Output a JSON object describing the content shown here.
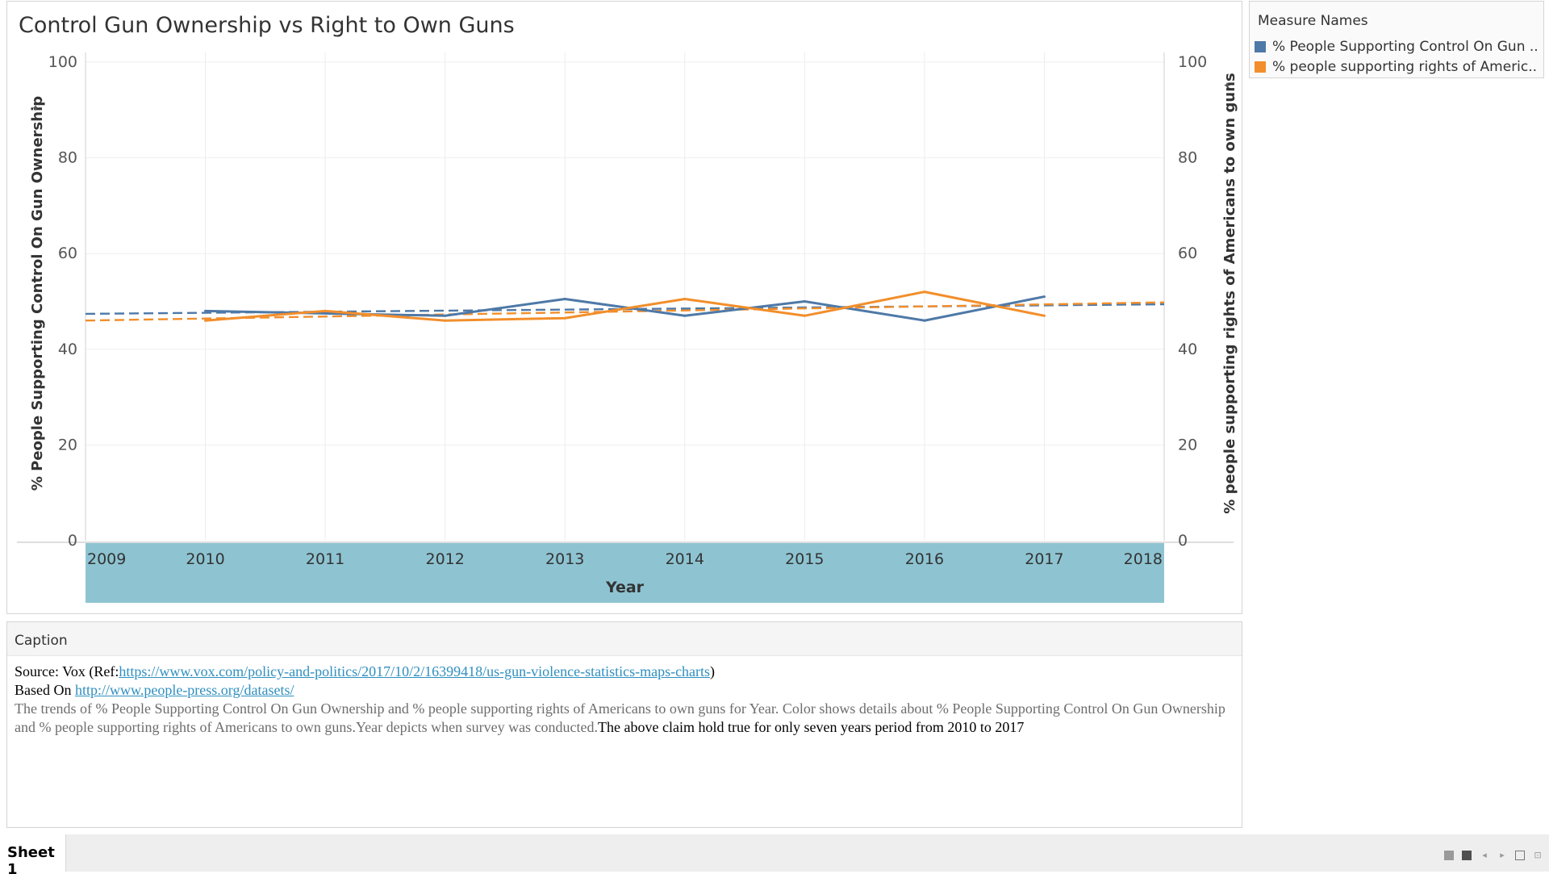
{
  "chart_title": "Control Gun Ownership vs Right to Own Guns",
  "legend": {
    "title": "Measure Names",
    "items": [
      {
        "label": "% People Supporting Control On Gun ..",
        "color": "#4e79a7"
      },
      {
        "label": "% people supporting rights of Americ..",
        "color": "#f28e2b"
      }
    ]
  },
  "caption": {
    "header": "Caption",
    "source_prefix": "Source: Vox (Ref:",
    "source_link": "https://www.vox.com/policy-and-politics/2017/10/2/16399418/us-gun-violence-statistics-maps-charts",
    "source_suffix": ")",
    "based_on_prefix": "Based On ",
    "based_on_link": "http://www.people-press.org/datasets/",
    "description": "The trends of % People Supporting Control On Gun Ownership and % people supporting rights of Americans to own guns for Year. Color shows details about % People Supporting Control On Gun Ownership and % people supporting rights of Americans to own guns.Year depicts when survey was conducted.",
    "claim": "The above claim hold true for only seven years period from 2010 to 2017"
  },
  "tabs": {
    "sheet": "Sheet 1"
  },
  "chart_data": {
    "type": "line",
    "title": "Control Gun Ownership vs Right to Own Guns",
    "xlabel": "Year",
    "ylabel_left": "% People Supporting Control On Gun Ownership",
    "ylabel_right": "% people supporting rights of Americans to own guns",
    "x_ticks": [
      "2009",
      "2010",
      "2011",
      "2012",
      "2013",
      "2014",
      "2015",
      "2016",
      "2017",
      "2018"
    ],
    "xlim": [
      2009,
      2018
    ],
    "ylim": [
      0,
      100
    ],
    "y_ticks": [
      0,
      20,
      40,
      60,
      80,
      100
    ],
    "grid": true,
    "legend_position": "top-right",
    "series": [
      {
        "name": "% People Supporting Control On Gun ..",
        "color": "#4e79a7",
        "axis": "left",
        "x": [
          2010,
          2011,
          2012,
          2013,
          2014,
          2015,
          2016,
          2017
        ],
        "values": [
          48,
          47.5,
          47,
          50.5,
          47,
          50,
          46,
          51
        ]
      },
      {
        "name": "% people supporting rights of Americ..",
        "color": "#f28e2b",
        "axis": "right",
        "x": [
          2010,
          2011,
          2012,
          2013,
          2014,
          2015,
          2016,
          2017
        ],
        "values": [
          46,
          48,
          46,
          46.5,
          50.5,
          47,
          52,
          47
        ]
      }
    ],
    "trend_lines": [
      {
        "series": "% People Supporting Control On Gun ..",
        "color": "#4e79a7",
        "style": "dashed",
        "x": [
          2009,
          2018
        ],
        "values": [
          47.4,
          49.4
        ]
      },
      {
        "series": "% people supporting rights of Americ..",
        "color": "#f28e2b",
        "style": "dashed",
        "x": [
          2009,
          2018
        ],
        "values": [
          46,
          49.8
        ]
      }
    ]
  }
}
